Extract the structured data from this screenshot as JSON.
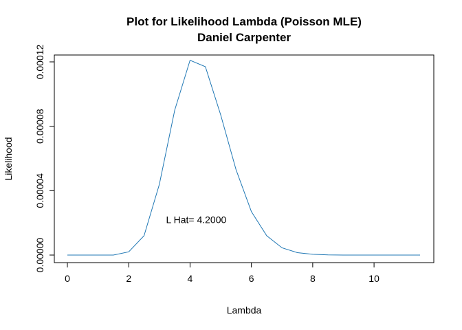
{
  "chart_data": {
    "type": "line",
    "title_line1": "Plot for Likelihood Lambda (Poisson MLE)",
    "title_line2": "Daniel Carpenter",
    "xlabel": "Lambda",
    "ylabel": "Likelihood",
    "xlim": [
      0,
      11.5
    ],
    "ylim": [
      0,
      0.00012
    ],
    "x_ticks": [
      0,
      2,
      4,
      6,
      8,
      10
    ],
    "x_tick_labels": [
      "0",
      "2",
      "4",
      "6",
      "8",
      "10"
    ],
    "y_ticks": [
      0,
      4e-05,
      8e-05,
      0.00012
    ],
    "y_tick_labels": [
      "0.00000",
      "0.00004",
      "0.00008",
      "0.00012"
    ],
    "annotation": {
      "text": "L Hat= 4.2000",
      "x": 4.2,
      "y": 2.2e-05
    },
    "line_color": "#1f77b4",
    "series": [
      {
        "x": [
          0,
          0.5,
          1,
          1.5,
          2,
          2.5,
          3,
          3.5,
          4,
          4.5,
          5,
          5.5,
          6,
          6.5,
          7,
          7.5,
          8,
          8.5,
          9,
          9.5,
          10,
          10.5,
          11,
          11.5
        ],
        "y": [
          0,
          0,
          0,
          0,
          2e-06,
          1.2e-05,
          4.4e-05,
          9e-05,
          0.000121,
          0.000117,
          8.7e-05,
          5.3e-05,
          2.7e-05,
          1.2e-05,
          4.5e-06,
          1.5e-06,
          5e-07,
          1e-07,
          0,
          0,
          0,
          0,
          0,
          0
        ]
      }
    ]
  }
}
